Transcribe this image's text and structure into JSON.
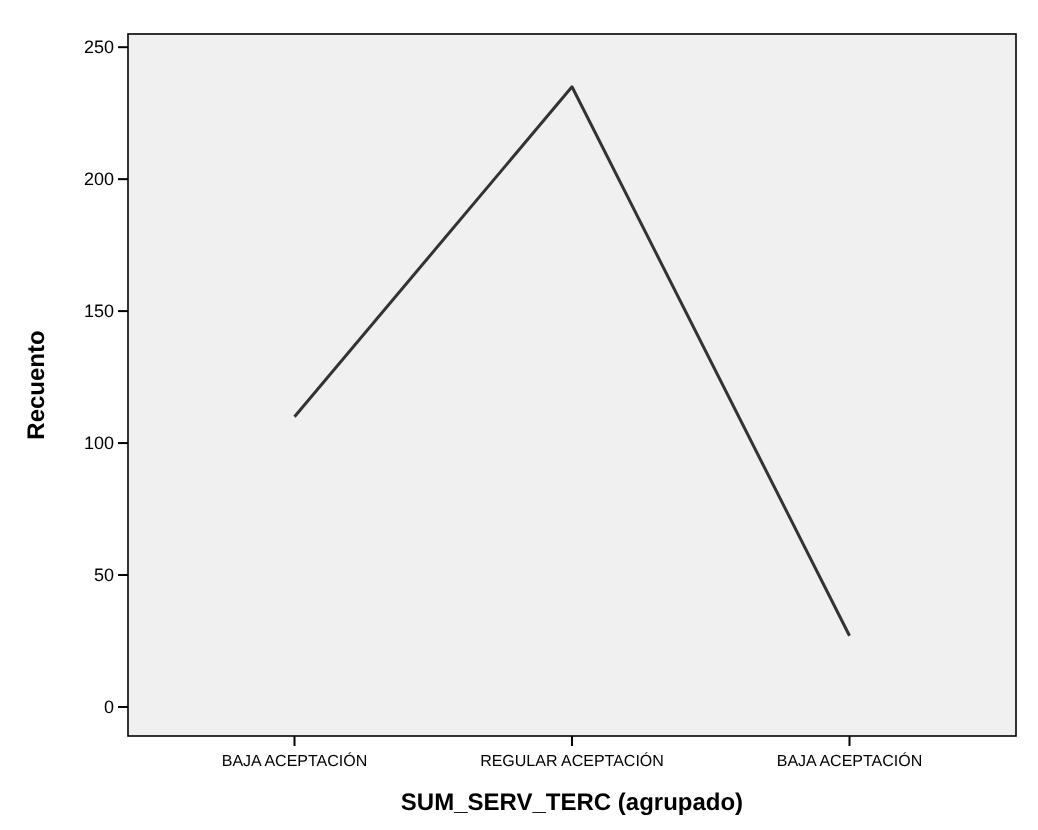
{
  "chart_data": {
    "type": "line",
    "xlabel": "SUM_SERV_TERC (agrupado)",
    "ylabel": "Recuento",
    "categories": [
      "BAJA ACEPTACIÓN",
      "REGULAR ACEPTACIÓN",
      "BAJA ACEPTACIÓN"
    ],
    "series": [
      {
        "color": "#333333",
        "values": [
          110,
          235,
          27
        ]
      }
    ],
    "ylim": [
      -11,
      255
    ],
    "yticks": [
      0,
      50,
      100,
      150,
      200,
      250
    ],
    "grid": false,
    "marker": "none",
    "line_style": "solid"
  }
}
